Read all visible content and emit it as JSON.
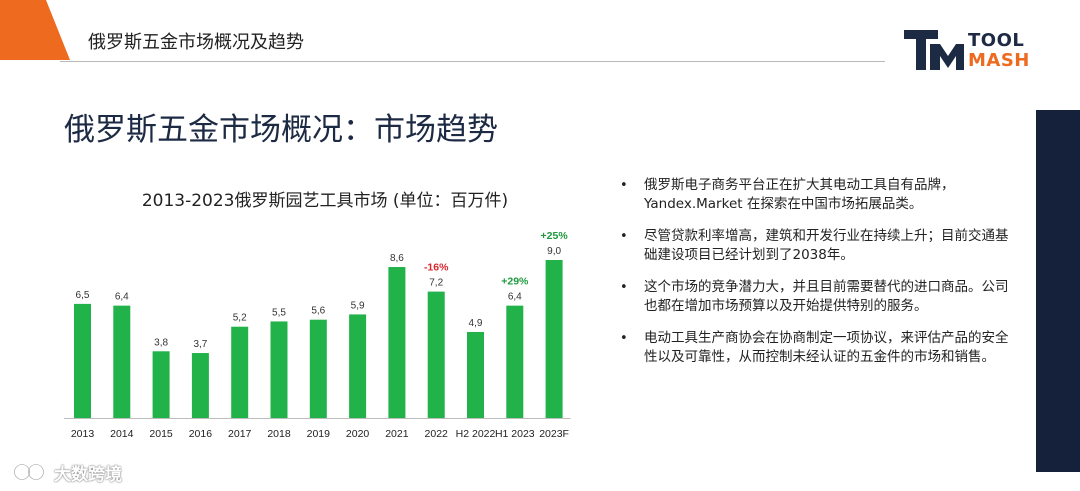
{
  "header": {
    "title": "俄罗斯五金市场概况及趋势",
    "accent_color": "#ee6a1e"
  },
  "logo": {
    "line1": "TOOL",
    "line2": "MASH",
    "mark_color": "#1d2a44",
    "accent_color": "#ee6a1e"
  },
  "slide": {
    "title": "俄罗斯五金市场概况：市场趋势",
    "side_bar_color": "#15213a"
  },
  "chart_data": {
    "type": "bar",
    "title": "2013-2023俄罗斯园艺工具市场 (单位：百万件)",
    "categories": [
      "2013",
      "2014",
      "2015",
      "2016",
      "2017",
      "2018",
      "2019",
      "2020",
      "2021",
      "2022",
      "H2 2022",
      "H1 2023",
      "2023F"
    ],
    "values": [
      6.5,
      6.4,
      3.8,
      3.7,
      5.2,
      5.5,
      5.6,
      5.9,
      8.6,
      7.2,
      4.9,
      6.4,
      9.0
    ],
    "data_labels": [
      "6,5",
      "6,4",
      "3,8",
      "3,7",
      "5,2",
      "5,5",
      "5,6",
      "5,9",
      "8,6",
      "7,2",
      "4,9",
      "6,4",
      "9,0"
    ],
    "ylim": [
      0,
      9.0
    ],
    "grid": false,
    "bar_color": "#21b24a",
    "annotations": [
      {
        "category": "2022",
        "text": "-16%",
        "color": "#d9252a"
      },
      {
        "category": "H1 2023",
        "text": "+29%",
        "color": "#1f9a3e"
      },
      {
        "category": "2023F",
        "text": "+25%",
        "color": "#1f9a3e"
      }
    ]
  },
  "bullets": [
    "俄罗斯电子商务平台正在扩大其电动工具自有品牌，Yandex.Market 在探索在中国市场拓展品类。",
    "尽管贷款利率增高，建筑和开发行业在持续上升；目前交通基础建设项目已经计划到了2038年。",
    "这个市场的竞争潜力大，并且目前需要替代的进口商品。公司也都在增加市场预算以及开始提供特别的服务。",
    "电动工具生产商协会在协商制定一项协议，来评估产品的安全性以及可靠性，从而控制未经认证的五金件的市场和销售。"
  ],
  "bullet_marker": "•",
  "watermark": {
    "text": "大数跨境"
  }
}
